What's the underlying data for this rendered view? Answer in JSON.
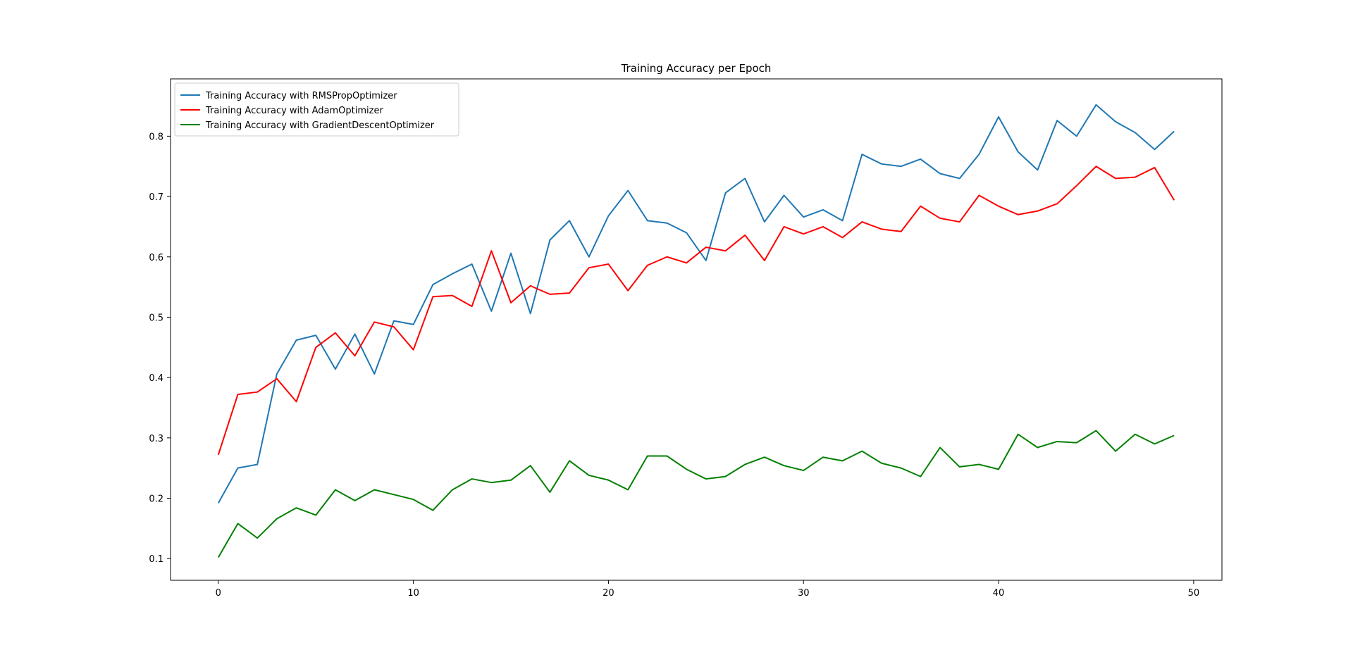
{
  "chart_data": {
    "type": "line",
    "title": "Training Accuracy per Epoch",
    "xlabel": "",
    "ylabel": "",
    "xlim": [
      -2.45,
      51.45
    ],
    "ylim": [
      0.064,
      0.895
    ],
    "xticks": [
      0,
      10,
      20,
      30,
      40,
      50
    ],
    "yticks": [
      0.1,
      0.2,
      0.3,
      0.4,
      0.5,
      0.6,
      0.7,
      0.8
    ],
    "grid": false,
    "legend_position": "upper left",
    "x": [
      0,
      1,
      2,
      3,
      4,
      5,
      6,
      7,
      8,
      9,
      10,
      11,
      12,
      13,
      14,
      15,
      16,
      17,
      18,
      19,
      20,
      21,
      22,
      23,
      24,
      25,
      26,
      27,
      28,
      29,
      30,
      31,
      32,
      33,
      34,
      35,
      36,
      37,
      38,
      39,
      40,
      41,
      42,
      43,
      44,
      45,
      46,
      47,
      48,
      49
    ],
    "series": [
      {
        "name": "Training Accuracy with RMSPropOptimizer",
        "color": "#1f77b4",
        "values": [
          0.192,
          0.25,
          0.256,
          0.406,
          0.462,
          0.47,
          0.414,
          0.472,
          0.406,
          0.494,
          0.488,
          0.554,
          0.572,
          0.588,
          0.51,
          0.606,
          0.506,
          0.628,
          0.66,
          0.6,
          0.668,
          0.71,
          0.66,
          0.656,
          0.64,
          0.594,
          0.706,
          0.73,
          0.658,
          0.702,
          0.666,
          0.678,
          0.66,
          0.77,
          0.754,
          0.75,
          0.762,
          0.738,
          0.73,
          0.77,
          0.832,
          0.774,
          0.744,
          0.826,
          0.8,
          0.852,
          0.824,
          0.806,
          0.778,
          0.808
        ]
      },
      {
        "name": "Training Accuracy with AdamOptimizer",
        "color": "#ff0000",
        "values": [
          0.272,
          0.372,
          0.376,
          0.398,
          0.36,
          0.45,
          0.474,
          0.436,
          0.492,
          0.484,
          0.446,
          0.534,
          0.536,
          0.518,
          0.61,
          0.524,
          0.552,
          0.538,
          0.54,
          0.582,
          0.588,
          0.544,
          0.586,
          0.6,
          0.59,
          0.616,
          0.61,
          0.636,
          0.594,
          0.65,
          0.638,
          0.65,
          0.632,
          0.658,
          0.646,
          0.642,
          0.684,
          0.664,
          0.658,
          0.702,
          0.684,
          0.67,
          0.676,
          0.688,
          0.718,
          0.75,
          0.73,
          0.732,
          0.748,
          0.694
        ]
      },
      {
        "name": "Training Accuracy with GradientDescentOptimizer",
        "color": "#008000",
        "values": [
          0.102,
          0.158,
          0.134,
          0.166,
          0.184,
          0.172,
          0.214,
          0.196,
          0.214,
          0.206,
          0.198,
          0.18,
          0.214,
          0.232,
          0.226,
          0.23,
          0.254,
          0.21,
          0.262,
          0.238,
          0.23,
          0.214,
          0.27,
          0.27,
          0.248,
          0.232,
          0.236,
          0.256,
          0.268,
          0.254,
          0.246,
          0.268,
          0.262,
          0.278,
          0.258,
          0.25,
          0.236,
          0.284,
          0.252,
          0.256,
          0.248,
          0.306,
          0.284,
          0.294,
          0.292,
          0.312,
          0.278,
          0.306,
          0.29,
          0.304
        ]
      }
    ]
  }
}
